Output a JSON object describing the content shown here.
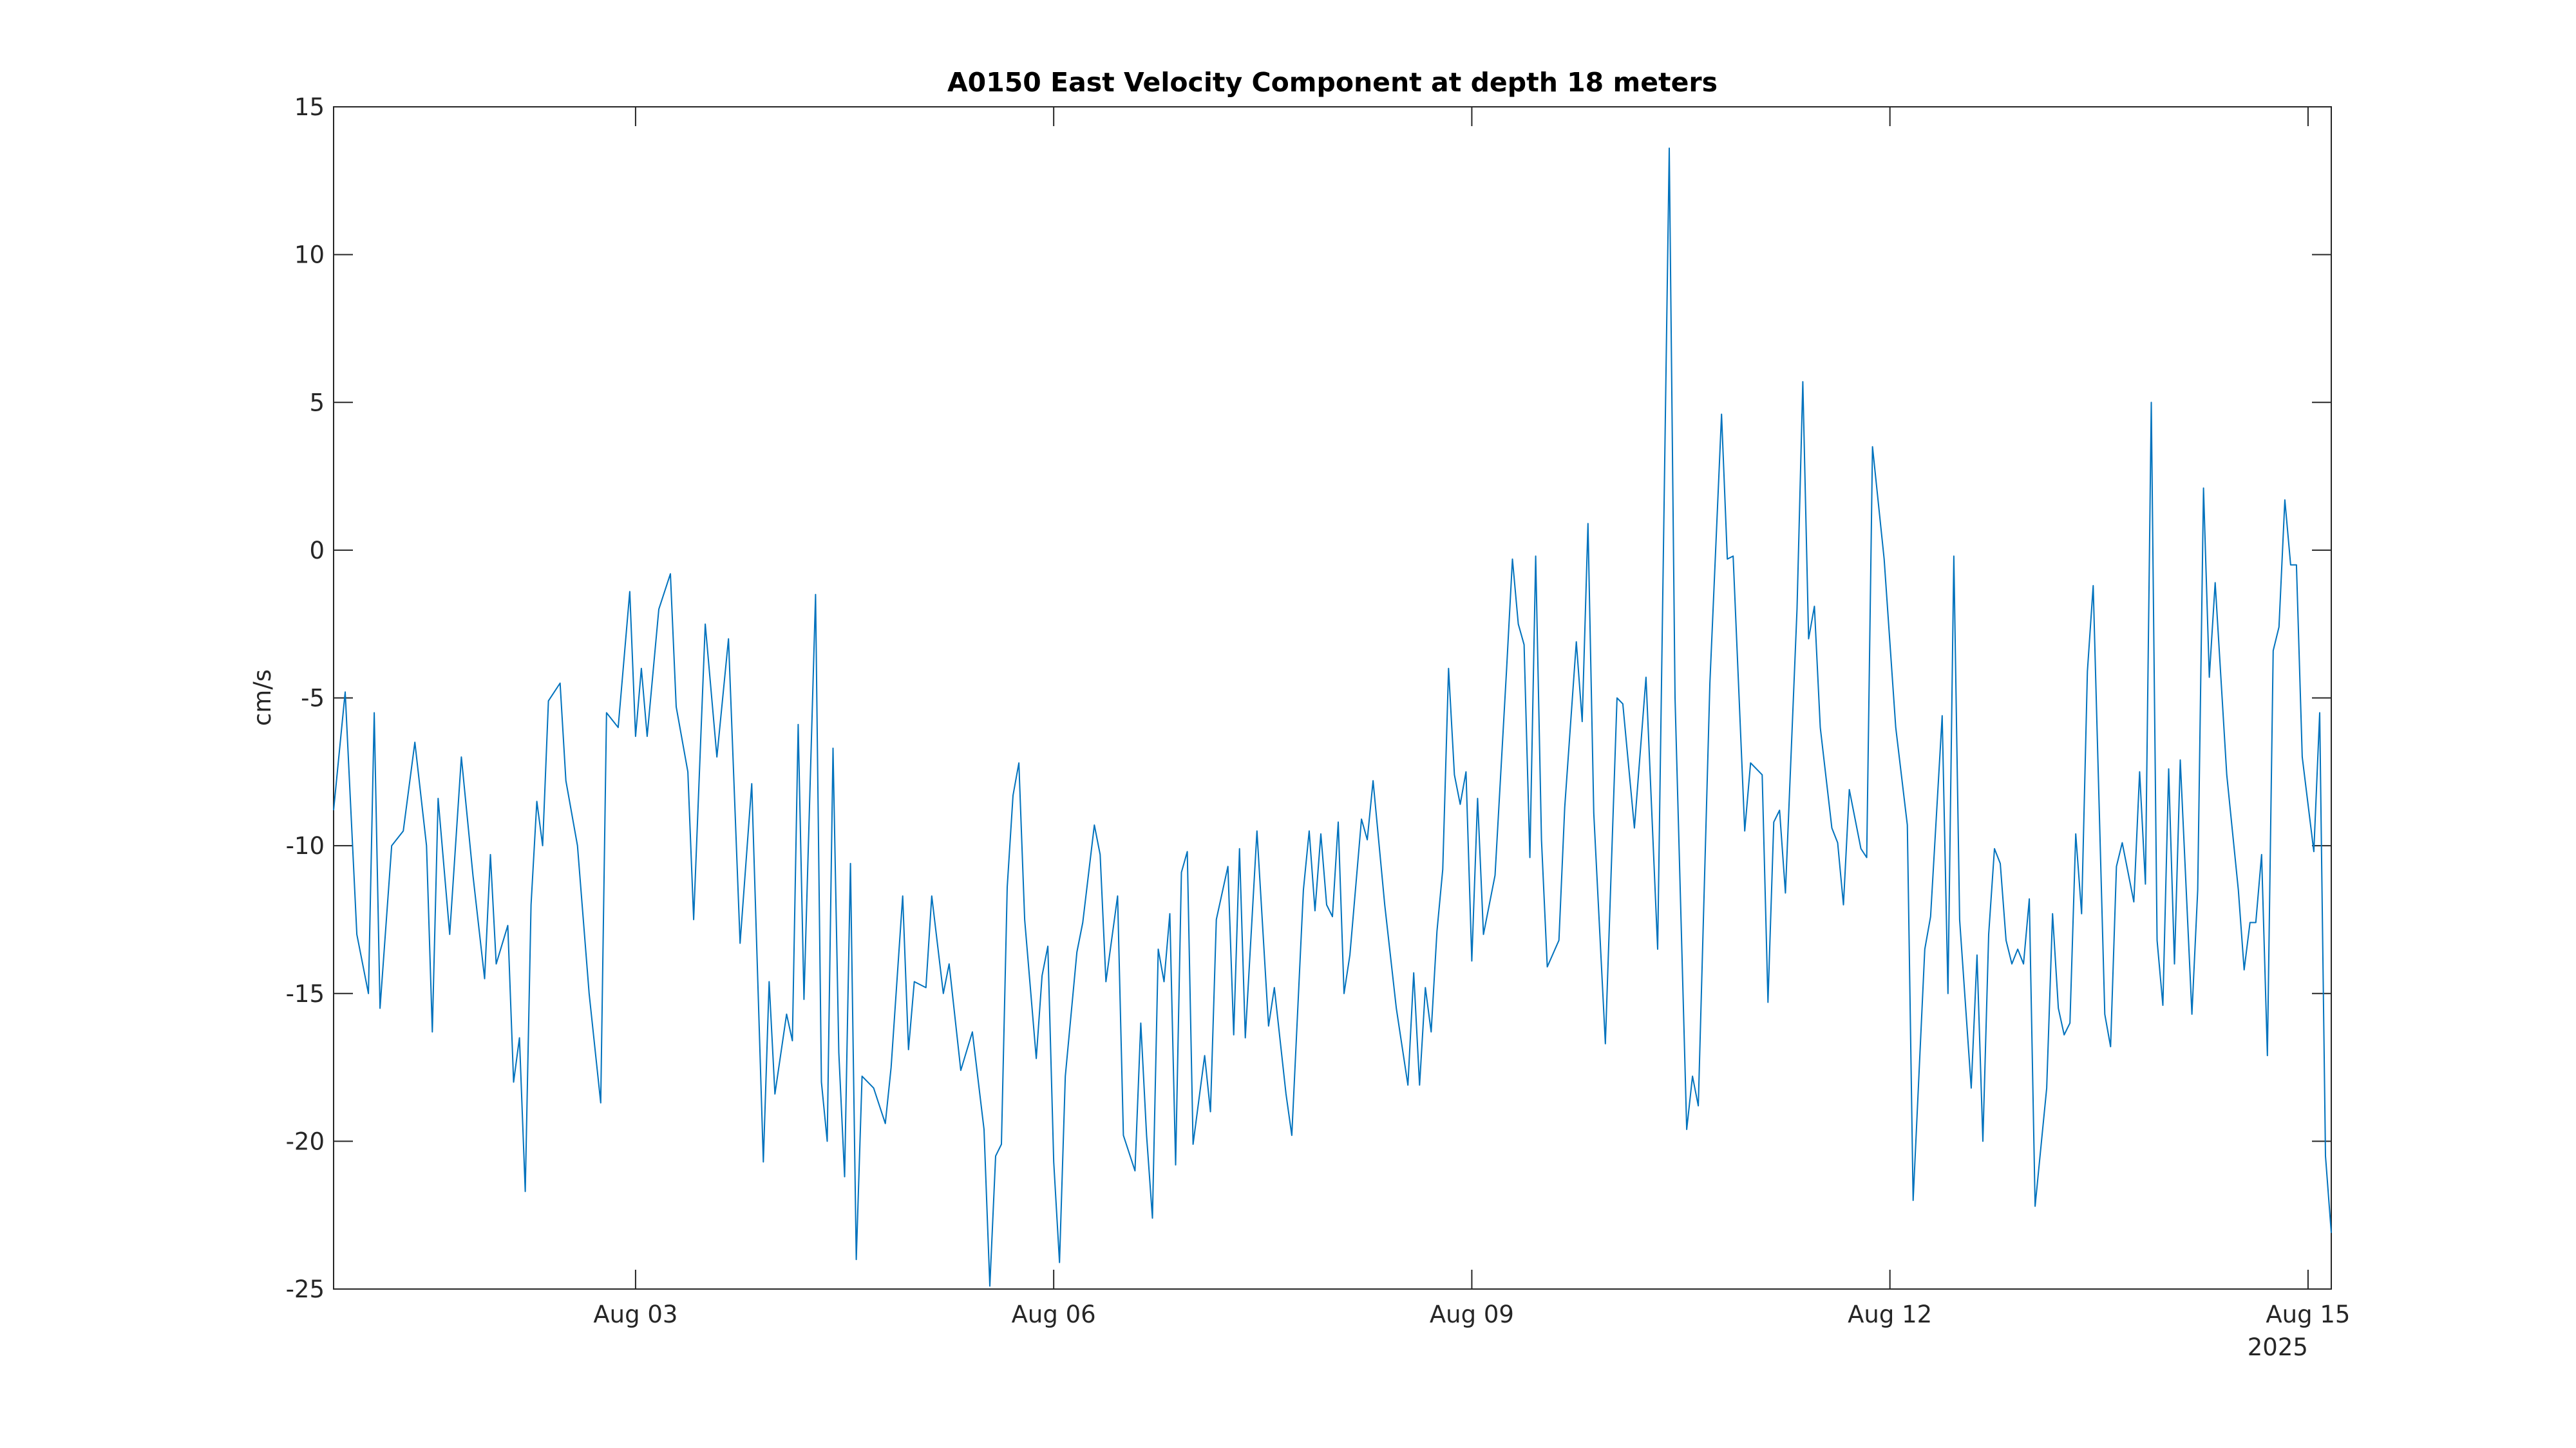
{
  "chart_data": {
    "type": "line",
    "title": "A0150 East Velocity Component at depth 18 meters",
    "ylabel": "cm/s",
    "x_year_label": "2025",
    "color": "#0072bd",
    "grid": false,
    "xlim": [
      "2025-07-31T20:00",
      "2025-08-15T04:00"
    ],
    "xticks": [
      {
        "value": "2025-08-03T00:00",
        "label": "Aug 03"
      },
      {
        "value": "2025-08-06T00:00",
        "label": "Aug 06"
      },
      {
        "value": "2025-08-09T00:00",
        "label": "Aug 09"
      },
      {
        "value": "2025-08-12T00:00",
        "label": "Aug 12"
      },
      {
        "value": "2025-08-15T00:00",
        "label": "Aug 15"
      }
    ],
    "ylim": [
      -25,
      15
    ],
    "yticks": [
      -25,
      -20,
      -15,
      -10,
      -5,
      0,
      5,
      10,
      15
    ],
    "x": [
      "2025-07-31T20:00",
      "2025-07-31T22:00",
      "2025-08-01T00:00",
      "2025-08-01T02:00",
      "2025-08-01T03:00",
      "2025-08-01T04:00",
      "2025-08-01T06:00",
      "2025-08-01T08:00",
      "2025-08-01T10:00",
      "2025-08-01T12:00",
      "2025-08-01T13:00",
      "2025-08-01T14:00",
      "2025-08-01T16:00",
      "2025-08-01T18:00",
      "2025-08-01T20:00",
      "2025-08-01T22:00",
      "2025-08-01T23:00",
      "2025-08-02T00:00",
      "2025-08-02T02:00",
      "2025-08-02T03:00",
      "2025-08-02T04:00",
      "2025-08-02T05:00",
      "2025-08-02T06:00",
      "2025-08-02T07:00",
      "2025-08-02T08:00",
      "2025-08-02T09:00",
      "2025-08-02T11:00",
      "2025-08-02T12:00",
      "2025-08-02T14:00",
      "2025-08-02T16:00",
      "2025-08-02T18:00",
      "2025-08-02T19:00",
      "2025-08-02T21:00",
      "2025-08-02T23:00",
      "2025-08-03T00:00",
      "2025-08-03T01:00",
      "2025-08-03T02:00",
      "2025-08-03T04:00",
      "2025-08-03T06:00",
      "2025-08-03T07:00",
      "2025-08-03T09:00",
      "2025-08-03T10:00",
      "2025-08-03T12:00",
      "2025-08-03T14:00",
      "2025-08-03T16:00",
      "2025-08-03T18:00",
      "2025-08-03T20:00",
      "2025-08-03T22:00",
      "2025-08-03T23:00",
      "2025-08-04T00:00",
      "2025-08-04T02:00",
      "2025-08-04T03:00",
      "2025-08-04T04:00",
      "2025-08-04T05:00",
      "2025-08-04T07:00",
      "2025-08-04T08:00",
      "2025-08-04T09:00",
      "2025-08-04T10:00",
      "2025-08-04T11:00",
      "2025-08-04T12:00",
      "2025-08-04T13:00",
      "2025-08-04T14:00",
      "2025-08-04T15:00",
      "2025-08-04T17:00",
      "2025-08-04T19:00",
      "2025-08-04T20:00",
      "2025-08-04T22:00",
      "2025-08-04T23:00",
      "2025-08-05T00:00",
      "2025-08-05T02:00",
      "2025-08-05T03:00",
      "2025-08-05T05:00",
      "2025-08-05T06:00",
      "2025-08-05T08:00",
      "2025-08-05T10:00",
      "2025-08-05T12:00",
      "2025-08-05T13:00",
      "2025-08-05T14:00",
      "2025-08-05T15:00",
      "2025-08-05T16:00",
      "2025-08-05T17:00",
      "2025-08-05T18:00",
      "2025-08-05T19:00",
      "2025-08-05T21:00",
      "2025-08-05T22:00",
      "2025-08-05T23:00",
      "2025-08-06T00:00",
      "2025-08-06T01:00",
      "2025-08-06T02:00",
      "2025-08-06T04:00",
      "2025-08-06T05:00",
      "2025-08-06T07:00",
      "2025-08-06T08:00",
      "2025-08-06T09:00",
      "2025-08-06T11:00",
      "2025-08-06T12:00",
      "2025-08-06T14:00",
      "2025-08-06T15:00",
      "2025-08-06T16:00",
      "2025-08-06T17:00",
      "2025-08-06T18:00",
      "2025-08-06T19:00",
      "2025-08-06T20:00",
      "2025-08-06T21:00",
      "2025-08-06T22:00",
      "2025-08-06T23:00",
      "2025-08-07T00:00",
      "2025-08-07T02:00",
      "2025-08-07T03:00",
      "2025-08-07T04:00",
      "2025-08-07T06:00",
      "2025-08-07T07:00",
      "2025-08-07T08:00",
      "2025-08-07T09:00",
      "2025-08-07T11:00",
      "2025-08-07T13:00",
      "2025-08-07T14:00",
      "2025-08-07T16:00",
      "2025-08-07T17:00",
      "2025-08-07T19:00",
      "2025-08-07T20:00",
      "2025-08-07T21:00",
      "2025-08-07T22:00",
      "2025-08-07T23:00",
      "2025-08-08T00:00",
      "2025-08-08T01:00",
      "2025-08-08T02:00",
      "2025-08-08T03:00",
      "2025-08-08T05:00",
      "2025-08-08T06:00",
      "2025-08-08T07:00",
      "2025-08-08T09:00",
      "2025-08-08T11:00",
      "2025-08-08T13:00",
      "2025-08-08T14:00",
      "2025-08-08T15:00",
      "2025-08-08T16:00",
      "2025-08-08T17:00",
      "2025-08-08T18:00",
      "2025-08-08T19:00",
      "2025-08-08T20:00",
      "2025-08-08T21:00",
      "2025-08-08T22:00",
      "2025-08-08T23:00",
      "2025-08-09T00:00",
      "2025-08-09T01:00",
      "2025-08-09T02:00",
      "2025-08-09T04:00",
      "2025-08-09T06:00",
      "2025-08-09T07:00",
      "2025-08-09T08:00",
      "2025-08-09T09:00",
      "2025-08-09T10:00",
      "2025-08-09T11:00",
      "2025-08-09T12:00",
      "2025-08-09T13:00",
      "2025-08-09T15:00",
      "2025-08-09T16:00",
      "2025-08-09T18:00",
      "2025-08-09T19:00",
      "2025-08-09T20:00",
      "2025-08-09T21:00",
      "2025-08-09T23:00",
      "2025-08-10T01:00",
      "2025-08-10T02:00",
      "2025-08-10T04:00",
      "2025-08-10T06:00",
      "2025-08-10T08:00",
      "2025-08-10T10:00",
      "2025-08-10T11:00",
      "2025-08-10T13:00",
      "2025-08-10T14:00",
      "2025-08-10T15:00",
      "2025-08-10T17:00",
      "2025-08-10T19:00",
      "2025-08-10T20:00",
      "2025-08-10T21:00",
      "2025-08-10T23:00",
      "2025-08-11T00:00",
      "2025-08-11T02:00",
      "2025-08-11T03:00",
      "2025-08-11T04:00",
      "2025-08-11T05:00",
      "2025-08-11T06:00",
      "2025-08-11T08:00",
      "2025-08-11T09:00",
      "2025-08-11T10:00",
      "2025-08-11T11:00",
      "2025-08-11T12:00",
      "2025-08-11T14:00",
      "2025-08-11T15:00",
      "2025-08-11T16:00",
      "2025-08-11T17:00",
      "2025-08-11T19:00",
      "2025-08-11T20:00",
      "2025-08-11T21:00",
      "2025-08-11T23:00",
      "2025-08-12T01:00",
      "2025-08-12T03:00",
      "2025-08-12T04:00",
      "2025-08-12T06:00",
      "2025-08-12T07:00",
      "2025-08-12T09:00",
      "2025-08-12T10:00",
      "2025-08-12T11:00",
      "2025-08-12T12:00",
      "2025-08-12T14:00",
      "2025-08-12T15:00",
      "2025-08-12T16:00",
      "2025-08-12T17:00",
      "2025-08-12T18:00",
      "2025-08-12T19:00",
      "2025-08-12T20:00",
      "2025-08-12T21:00",
      "2025-08-12T22:00",
      "2025-08-12T23:00",
      "2025-08-13T00:00",
      "2025-08-13T01:00",
      "2025-08-13T03:00",
      "2025-08-13T04:00",
      "2025-08-13T05:00",
      "2025-08-13T06:00",
      "2025-08-13T07:00",
      "2025-08-13T08:00",
      "2025-08-13T09:00",
      "2025-08-13T10:00",
      "2025-08-13T11:00",
      "2025-08-13T13:00",
      "2025-08-13T14:00",
      "2025-08-13T15:00",
      "2025-08-13T16:00",
      "2025-08-13T18:00",
      "2025-08-13T19:00",
      "2025-08-13T20:00",
      "2025-08-13T21:00",
      "2025-08-13T22:00",
      "2025-08-13T23:00",
      "2025-08-14T00:00",
      "2025-08-14T01:00",
      "2025-08-14T02:00",
      "2025-08-14T04:00",
      "2025-08-14T05:00",
      "2025-08-14T06:00",
      "2025-08-14T07:00",
      "2025-08-14T08:00",
      "2025-08-14T10:00",
      "2025-08-14T12:00",
      "2025-08-14T13:00",
      "2025-08-14T14:00",
      "2025-08-14T15:00",
      "2025-08-14T16:00",
      "2025-08-14T17:00",
      "2025-08-14T18:00",
      "2025-08-14T19:00",
      "2025-08-14T20:00",
      "2025-08-14T21:00",
      "2025-08-14T22:00",
      "2025-08-14T23:00",
      "2025-08-15T01:00",
      "2025-08-15T02:00",
      "2025-08-15T03:00",
      "2025-08-15T04:00"
    ],
    "values": [
      -8.8,
      -4.8,
      -13,
      -15,
      -5.5,
      -15.5,
      -10,
      -9.5,
      -6.5,
      -10,
      -16.3,
      -8.4,
      -13,
      -7,
      -11,
      -14.5,
      -10.3,
      -14,
      -12.7,
      -18,
      -16.5,
      -21.7,
      -12,
      -8.5,
      -10,
      -5.1,
      -4.5,
      -7.8,
      -10,
      -15,
      -18.7,
      -5.5,
      -6,
      -1.4,
      -6.3,
      -4,
      -6.3,
      -2,
      -0.8,
      -5.3,
      -7.5,
      -12.5,
      -2.5,
      -7,
      -3,
      -13.3,
      -7.9,
      -20.7,
      -14.6,
      -18.4,
      -15.7,
      -16.6,
      -5.9,
      -15.2,
      -1.5,
      -18,
      -20,
      -6.7,
      -17,
      -21.2,
      -10.6,
      -24,
      -17.8,
      -18.2,
      -19.4,
      -17.5,
      -11.7,
      -16.9,
      -14.6,
      -14.8,
      -11.7,
      -15,
      -14,
      -17.6,
      -16.3,
      -19.6,
      -24.9,
      -20.5,
      -20.1,
      -11.4,
      -8.3,
      -7.2,
      -12.5,
      -17.2,
      -14.4,
      -13.4,
      -20.7,
      -24.1,
      -17.8,
      -13.6,
      -12.6,
      -9.3,
      -10.3,
      -14.6,
      -11.7,
      -19.8,
      -21,
      -16,
      -19.8,
      -22.6,
      -13.5,
      -14.6,
      -12.3,
      -20.8,
      -10.9,
      -10.2,
      -20.1,
      -17.1,
      -19,
      -12.5,
      -10.7,
      -16.4,
      -10.1,
      -16.5,
      -9.5,
      -16.1,
      -14.8,
      -18.4,
      -19.8,
      -11.5,
      -9.5,
      -12.2,
      -9.6,
      -12,
      -12.4,
      -9.2,
      -15,
      -13.7,
      -9.1,
      -9.8,
      -7.8,
      -12,
      -15.5,
      -18.1,
      -14.3,
      -18.1,
      -14.8,
      -16.3,
      -12.9,
      -10.8,
      -4,
      -7.6,
      -8.6,
      -7.5,
      -13.9,
      -8.4,
      -13,
      -11,
      -4,
      -0.3,
      -2.5,
      -3.2,
      -10.4,
      -0.2,
      -9.8,
      -14.1,
      -13.2,
      -8.7,
      -3.1,
      -5.8,
      0.9,
      -8.9,
      -16.7,
      -5,
      -5.2,
      -9.4,
      -4.3,
      -13.5,
      13.6,
      -5,
      -19.6,
      -17.8,
      -18.8,
      -4.5,
      4.6,
      -0.3,
      -0.2,
      -9.5,
      -7.2,
      -7.6,
      -15.3,
      -9.2,
      -8.8,
      -11.6,
      -2,
      5.7,
      -3,
      -1.9,
      -6,
      -9.4,
      -9.9,
      -12,
      -8.1,
      -10.1,
      -10.4,
      3.5,
      -0.3,
      -6,
      -9.3,
      -22,
      -13.5,
      -12.4,
      -5.6,
      -15,
      -0.2,
      -12.5,
      -18.2,
      -13.7,
      -20,
      -13,
      -10.1,
      -10.6,
      -13.2,
      -14,
      -13.5,
      -14,
      -11.8,
      -22.2,
      -18.2,
      -12.3,
      -15.5,
      -16.4,
      -16,
      -9.6,
      -12.3,
      -4.1,
      -1.2,
      -15.7,
      -16.8,
      -10.7,
      -9.9,
      -11.9,
      -7.5,
      -11.3,
      5,
      -13.2,
      -15.4,
      -7.4,
      -14,
      -7.1,
      -15.7,
      -11.5,
      2.1,
      -4.3,
      -1.1,
      -7.6,
      -11.5,
      -14.2,
      -12.6,
      -12.6,
      -10.3,
      -17.1,
      -3.4,
      -2.6,
      1.7,
      -0.5,
      -0.5,
      -7,
      -10.2,
      -5.5,
      -20.5,
      -23.1
    ]
  }
}
